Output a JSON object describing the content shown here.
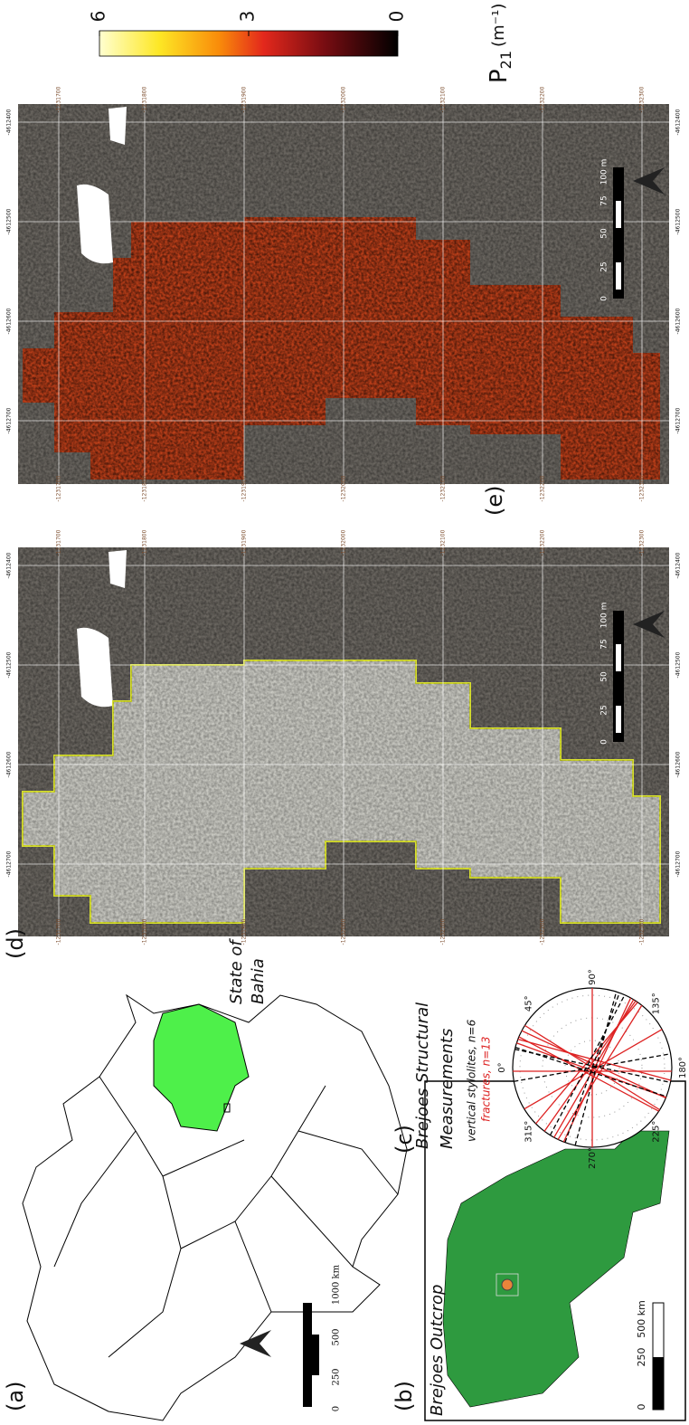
{
  "panel_a": {
    "label": "(a)",
    "region_label": [
      "State of",
      "Bahia"
    ],
    "scale_labels": [
      "0",
      "250",
      "500",
      "1000 km"
    ]
  },
  "panel_b": {
    "label": "(b)",
    "title": "Brejoes Outcrop",
    "scale_labels": [
      "0",
      "250",
      "500 km"
    ]
  },
  "panel_c": {
    "label": "(c)",
    "title": [
      "Brejoes Structural",
      "Measurements"
    ],
    "legend": [
      "vertical stylolites, n=6",
      "fractures, n=13"
    ],
    "azimuths": [
      "0°",
      "45°",
      "90°",
      "135°",
      "180°",
      "225°",
      "270°",
      "315°"
    ]
  },
  "panel_d": {
    "label": "(d)"
  },
  "panel_e": {
    "label": "(e)",
    "colorbar": {
      "lim": [
        0,
        6
      ],
      "ticks": [
        6,
        3,
        0
      ],
      "symbol": "P",
      "subscript": "21",
      "unit": "(m⁻¹)"
    }
  },
  "map_grid": {
    "x_labels": [
      "-1231700",
      "-1231800",
      "-1231900",
      "-1232000",
      "-1232100",
      "-1232200",
      "-1232300"
    ],
    "y_labels": [
      "-4612700",
      "-4612600",
      "-4612500",
      "-4612400"
    ]
  },
  "map_scale_labels": [
    "0",
    "25",
    "50",
    "75",
    "100 m"
  ]
}
